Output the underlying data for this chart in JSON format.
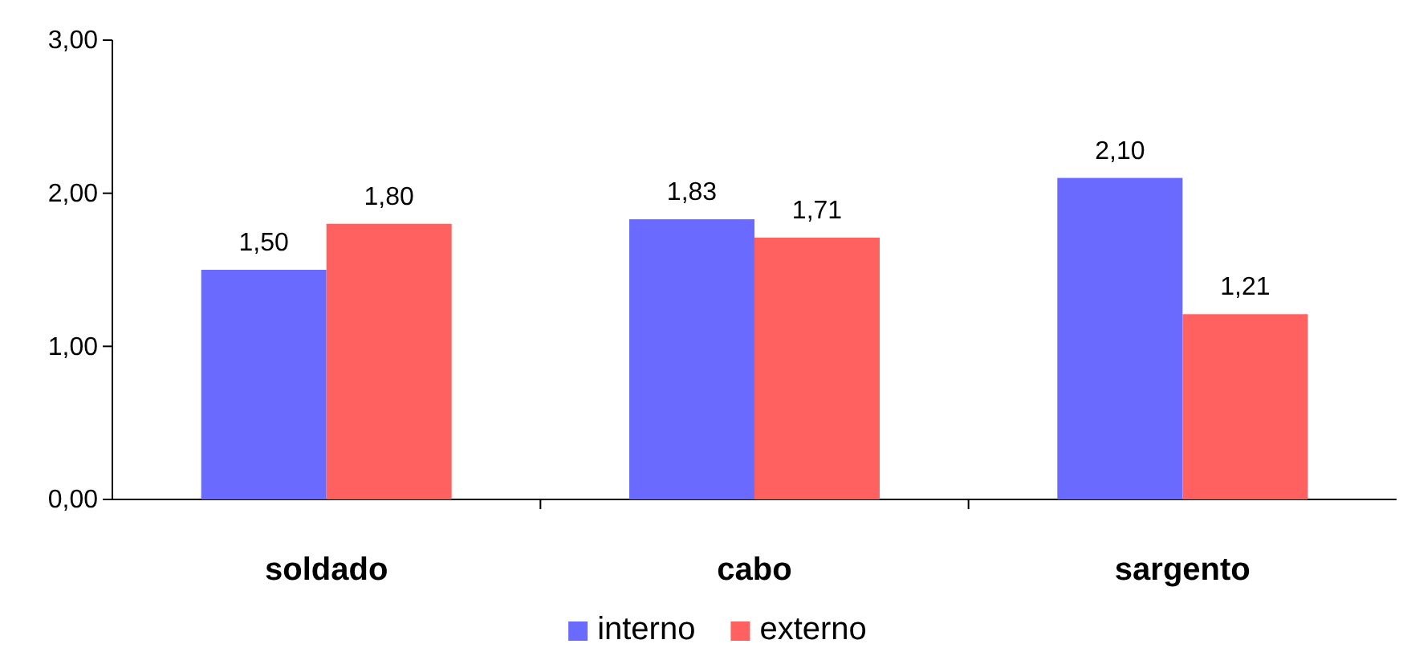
{
  "chart_data": {
    "type": "bar",
    "categories": [
      "soldado",
      "cabo",
      "sargento"
    ],
    "series": [
      {
        "name": "interno",
        "color": "#6a6aff",
        "values": [
          1.5,
          1.83,
          2.1
        ],
        "value_labels": [
          "1,50",
          "1,83",
          "2,10"
        ]
      },
      {
        "name": "externo",
        "color": "#ff6060",
        "values": [
          1.8,
          1.71,
          1.21
        ],
        "value_labels": [
          "1,80",
          "1,71",
          "1,21"
        ]
      }
    ],
    "ylim": [
      0,
      3
    ],
    "yticks": [
      {
        "value": 0,
        "label": "0,00"
      },
      {
        "value": 1,
        "label": "1,00"
      },
      {
        "value": 2,
        "label": "2,00"
      },
      {
        "value": 3,
        "label": "3,00"
      }
    ],
    "legend": "bottom",
    "grid": false
  }
}
